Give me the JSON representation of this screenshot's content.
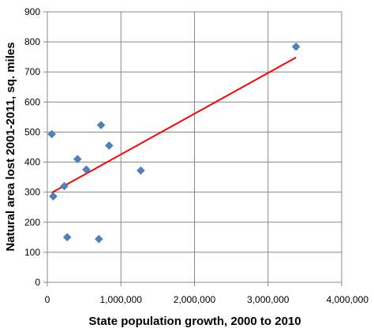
{
  "chart_data": {
    "type": "scatter",
    "title": "",
    "xlabel": "State population growth, 2000 to 2010",
    "ylabel": "Natural area lost 2001-2011, sq. miles",
    "xlim": [
      0,
      4000000
    ],
    "ylim": [
      0,
      900
    ],
    "grid": true,
    "x_ticks": [
      0,
      1000000,
      2000000,
      3000000,
      4000000
    ],
    "x_tick_labels": [
      "0",
      "1,000,000",
      "2,000,000",
      "3,000,000",
      "4,000,000"
    ],
    "y_ticks": [
      0,
      100,
      200,
      300,
      400,
      500,
      600,
      700,
      800,
      900
    ],
    "y_tick_labels": [
      "0",
      "100",
      "200",
      "300",
      "400",
      "500",
      "600",
      "700",
      "800",
      "900"
    ],
    "series": [
      {
        "type": "scatter",
        "marker": "diamond",
        "color": "#4f81bd",
        "points": [
          {
            "x": 60000,
            "y": 493
          },
          {
            "x": 80000,
            "y": 286
          },
          {
            "x": 230000,
            "y": 320
          },
          {
            "x": 270000,
            "y": 150
          },
          {
            "x": 410000,
            "y": 410
          },
          {
            "x": 530000,
            "y": 375
          },
          {
            "x": 700000,
            "y": 144
          },
          {
            "x": 730000,
            "y": 523
          },
          {
            "x": 840000,
            "y": 455
          },
          {
            "x": 1270000,
            "y": 372
          },
          {
            "x": 3380000,
            "y": 784
          }
        ]
      },
      {
        "type": "line",
        "role": "trendline",
        "color": "#ff0000",
        "points": [
          {
            "x": 60000,
            "y": 298
          },
          {
            "x": 3380000,
            "y": 748
          }
        ]
      }
    ]
  }
}
